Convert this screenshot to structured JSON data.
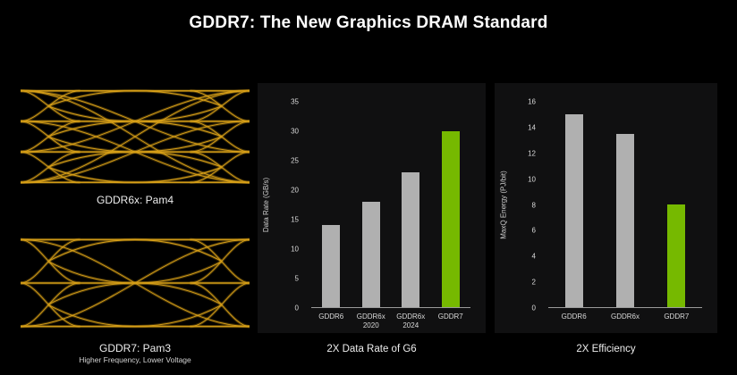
{
  "title": "GDDR7: The New Graphics DRAM Standard",
  "colors": {
    "background": "#000000",
    "panel": "#101011",
    "bar_gray": "#b0b0b0",
    "bar_green": "#76b900",
    "eye_trace": "#d8a018",
    "axis_line": "#9b9b9b",
    "text": "#ffffff"
  },
  "eyes": [
    {
      "caption": "GDDR6x: Pam4",
      "subtitle": "",
      "levels": 4
    },
    {
      "caption": "GDDR7: Pam3",
      "subtitle": "Higher Frequency, Lower Voltage",
      "levels": 3
    }
  ],
  "chart_data": [
    {
      "type": "bar",
      "title": "2X Data Rate of G6",
      "ylabel": "Data Rate (GB/s)",
      "categories": [
        "GDDR6",
        "GDDR6x\n2020",
        "GDDR6x\n2024",
        "GDDR7"
      ],
      "values": [
        14,
        18,
        23,
        30
      ],
      "ylim": [
        0,
        35
      ],
      "ytick_step": 5,
      "highlight_index": 3,
      "legend": "none",
      "grid": false
    },
    {
      "type": "bar",
      "title": "2X Efficiency",
      "ylabel": "MaxQ Energy (PJ/bit)",
      "categories": [
        "GDDR6",
        "GDDR6x",
        "GDDR7"
      ],
      "values": [
        15,
        13.5,
        8
      ],
      "ylim": [
        0,
        16
      ],
      "ytick_step": 2,
      "highlight_index": 2,
      "legend": "none",
      "grid": false
    }
  ]
}
